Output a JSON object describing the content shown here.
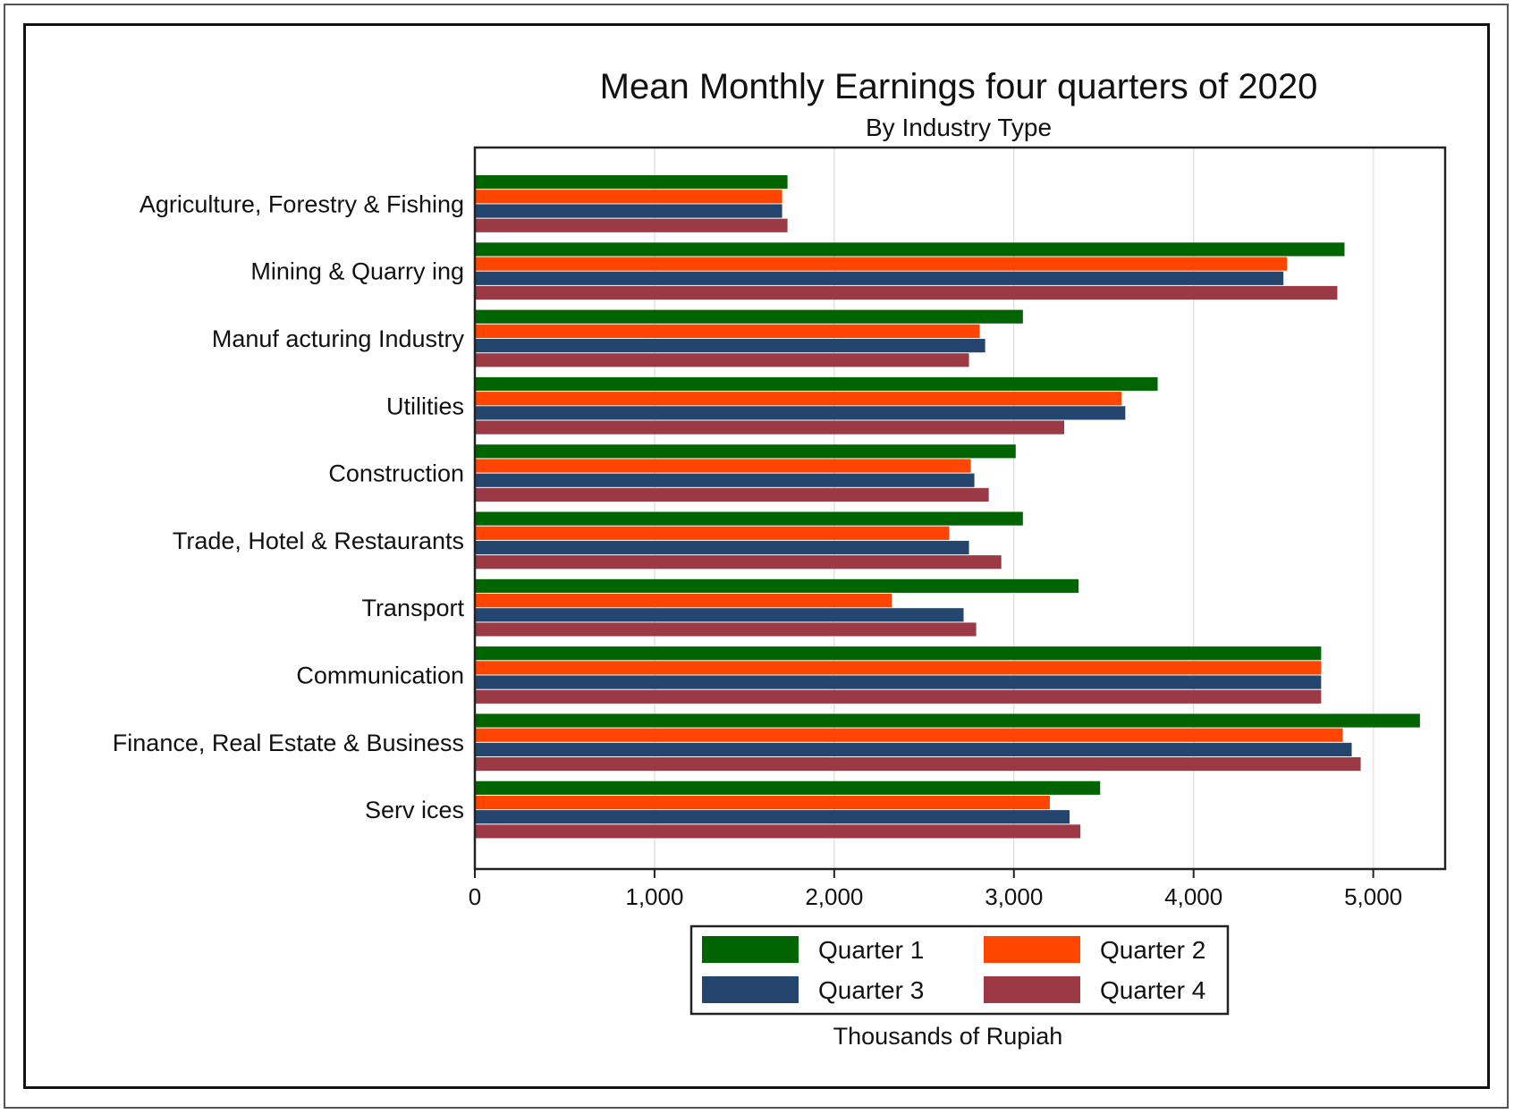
{
  "chart_data": {
    "type": "bar",
    "orientation": "horizontal",
    "title": "Mean Monthly Earnings four quarters of 2020",
    "subtitle": "By Industry Type",
    "xlabel": "Thousands of Rupiah",
    "ylabel": "",
    "xlim": [
      0,
      5400
    ],
    "x_ticks": [
      0,
      1000,
      2000,
      3000,
      4000,
      5000
    ],
    "x_tick_labels": [
      "0",
      "1,000",
      "2,000",
      "3,000",
      "4,000",
      "5,000"
    ],
    "grid": true,
    "legend_position": "bottom",
    "categories": [
      "Agriculture, Forestry & Fishing",
      "Mining & Quarry ing",
      "Manuf acturing Industry",
      "Utilities",
      "Construction",
      "Trade, Hotel & Restaurants",
      "Transport",
      "Communication",
      "Finance, Real Estate & Business",
      "Serv ices"
    ],
    "series": [
      {
        "name": "Quarter 1",
        "color": "#006400",
        "values": [
          1740,
          4840,
          3050,
          3800,
          3010,
          3050,
          3360,
          4710,
          5260,
          3480
        ]
      },
      {
        "name": "Quarter 2",
        "color": "#ff4500",
        "values": [
          1710,
          4520,
          2810,
          3600,
          2760,
          2640,
          2320,
          4710,
          4830,
          3200
        ]
      },
      {
        "name": "Quarter 3",
        "color": "#24466e",
        "values": [
          1710,
          4500,
          2840,
          3620,
          2780,
          2750,
          2720,
          4710,
          4880,
          3310
        ]
      },
      {
        "name": "Quarter 4",
        "color": "#9b3a44",
        "values": [
          1740,
          4800,
          2750,
          3280,
          2860,
          2930,
          2790,
          4710,
          4930,
          3370
        ]
      }
    ]
  }
}
